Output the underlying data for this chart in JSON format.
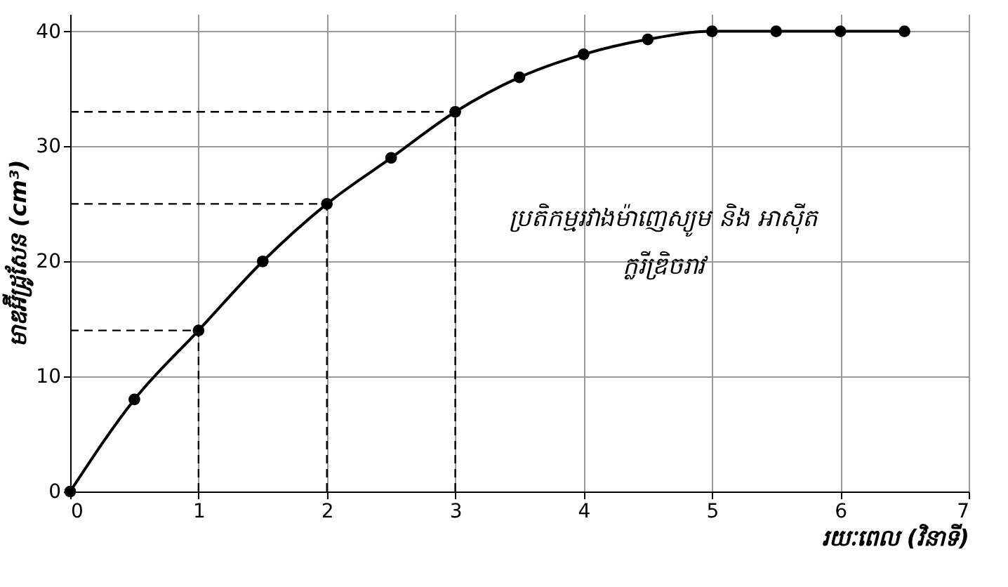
{
  "chart_data": {
    "type": "line",
    "xlabel": "រយៈពេល (វិនាទី)",
    "ylabel": "មាឌអ៊ីដ្រូសែន (cm³)",
    "x": [
      0,
      0.5,
      1,
      1.5,
      2,
      2.5,
      3,
      3.5,
      4,
      4.5,
      5,
      5.5,
      6,
      6.5
    ],
    "series": [
      {
        "color": "#000000",
        "values": [
          0,
          8,
          14,
          20,
          25,
          29,
          33,
          36,
          38,
          39.3,
          40,
          40,
          40,
          40
        ]
      }
    ],
    "xlim": [
      0,
      7
    ],
    "ylim": [
      0,
      41.5
    ],
    "xticks": [
      0,
      1,
      2,
      3,
      4,
      5,
      6,
      7
    ],
    "yticks": [
      0,
      10,
      20,
      30,
      40
    ],
    "grid": true,
    "marker": "circle",
    "line_style": "solid",
    "ref_lines": [
      {
        "axis": "x",
        "value": 1,
        "line_style": "dashed",
        "color": "#000000"
      },
      {
        "axis": "x",
        "value": 2,
        "line_style": "dashed",
        "color": "#000000"
      },
      {
        "axis": "x",
        "value": 3,
        "line_style": "dashed",
        "color": "#000000"
      },
      {
        "axis": "y",
        "value": 14,
        "line_style": "dashed",
        "color": "#000000"
      },
      {
        "axis": "y",
        "value": 25,
        "line_style": "dashed",
        "color": "#000000"
      },
      {
        "axis": "y",
        "value": 33,
        "line_style": "dashed",
        "color": "#000000"
      }
    ],
    "annotations": [
      "ប្រតិកម្មរវាងម៉ាញេស្យូម និង អាស៊ីត\nក្លរីឌ្រិចរាវ"
    ]
  }
}
